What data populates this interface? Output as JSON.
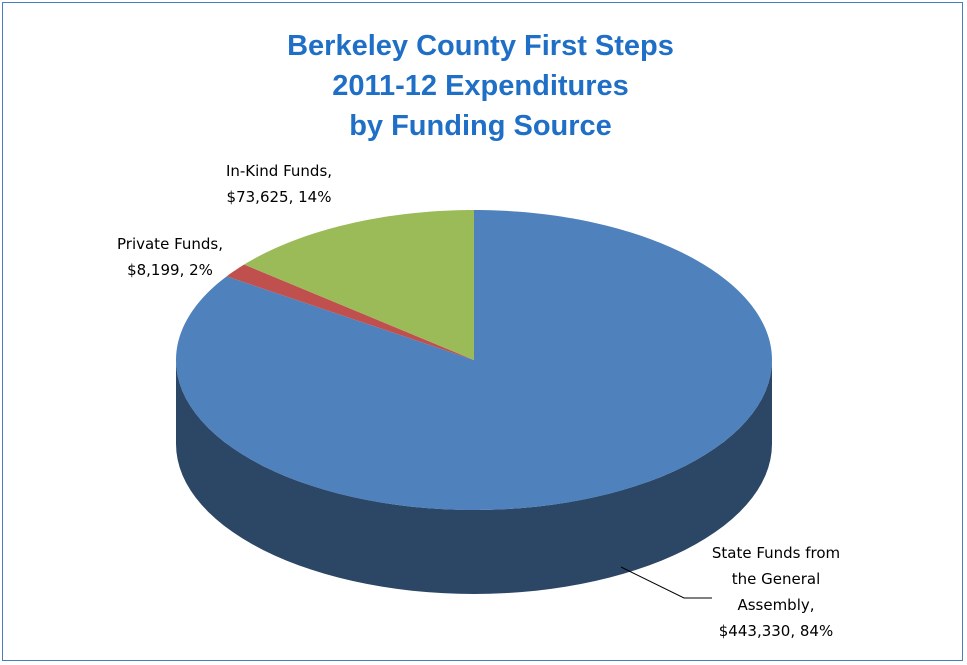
{
  "chart_data": {
    "type": "pie",
    "style": "3d",
    "title_lines": [
      "Berkeley County First Steps",
      "2011-12 Expenditures",
      "by Funding Source"
    ],
    "slices": [
      {
        "name": "State Funds from the General Assembly",
        "value": 443330,
        "percent": 84,
        "color": "#4f81bd",
        "side_color": "#2c4766",
        "label_lines": [
          "State Funds from",
          "the General",
          "Assembly,",
          "$443,330, 84%"
        ]
      },
      {
        "name": "Private Funds",
        "value": 8199,
        "percent": 2,
        "color": "#c0504d",
        "side_color": "#7a2f2d",
        "label_lines": [
          "Private Funds,",
          "$8,199, 2%"
        ]
      },
      {
        "name": "In-Kind Funds",
        "value": 73625,
        "percent": 14,
        "color": "#9bbb59",
        "side_color": "#617a34",
        "label_lines": [
          "In-Kind Funds,",
          "$73,625, 14%"
        ]
      }
    ],
    "legend": "none",
    "border_color": "#4a7ebb",
    "title_color": "#1f6fc6"
  }
}
